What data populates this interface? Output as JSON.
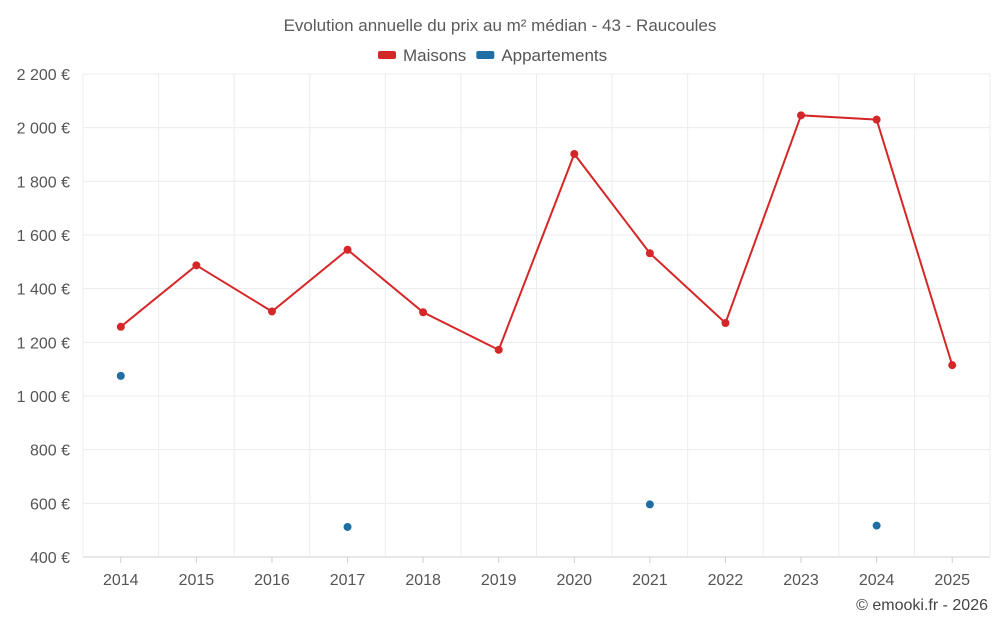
{
  "chart_data": {
    "type": "line",
    "title": "Evolution annuelle du prix au m² médian - 43 - Raucoules",
    "x": [
      "2014",
      "2015",
      "2016",
      "2017",
      "2018",
      "2019",
      "2020",
      "2021",
      "2022",
      "2023",
      "2024",
      "2025"
    ],
    "ylim": [
      400,
      2200
    ],
    "yticks": [
      400,
      600,
      800,
      1000,
      1200,
      1400,
      1600,
      1800,
      2000,
      2200
    ],
    "ytick_labels": [
      "400 €",
      "600 €",
      "800 €",
      "1 000 €",
      "1 200 €",
      "1 400 €",
      "1 600 €",
      "1 800 €",
      "2 000 €",
      "2 200 €"
    ],
    "grid": true,
    "legend_position": "top-center",
    "series": [
      {
        "name": "Maisons",
        "color": "#d62728",
        "line": true,
        "values": [
          1258,
          1487,
          1315,
          1545,
          1312,
          1172,
          1902,
          1532,
          1272,
          2046,
          2030,
          1115
        ]
      },
      {
        "name": "Appartements",
        "color": "#1f6fa5",
        "line": false,
        "values": [
          1075,
          null,
          null,
          512,
          null,
          null,
          null,
          596,
          null,
          null,
          517,
          null
        ]
      }
    ]
  },
  "credit": "© emooki.fr - 2026"
}
